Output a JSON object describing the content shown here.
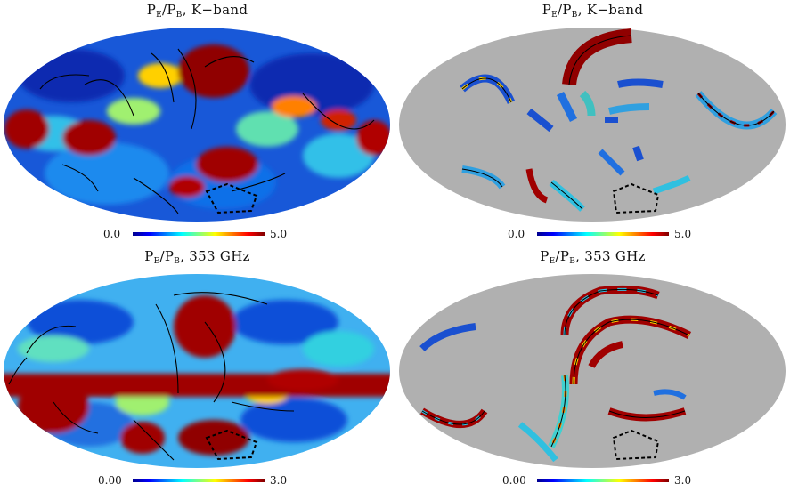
{
  "panels": [
    {
      "id": "top-left",
      "title": {
        "main": "P",
        "sub1": "E",
        "mid": "/P",
        "sub2": "B",
        "suffix": ", K−band"
      },
      "colorbar": {
        "min_label": "0.0",
        "max_label": "5.0",
        "min": 0.0,
        "max": 5.0
      },
      "masked": false
    },
    {
      "id": "top-right",
      "title": {
        "main": "P",
        "sub1": "E",
        "mid": "/P",
        "sub2": "B",
        "suffix": ", K−band"
      },
      "colorbar": {
        "min_label": "0.0",
        "max_label": "5.0",
        "min": 0.0,
        "max": 5.0
      },
      "masked": true
    },
    {
      "id": "bottom-left",
      "title": {
        "main": "P",
        "sub1": "E",
        "mid": "/P",
        "sub2": "B",
        "suffix": ", 353 GHz"
      },
      "colorbar": {
        "min_label": "0.00",
        "max_label": "3.0",
        "min": 0.0,
        "max": 3.0
      },
      "masked": false
    },
    {
      "id": "bottom-right",
      "title": {
        "main": "P",
        "sub1": "E",
        "mid": "/P",
        "sub2": "B",
        "suffix": ", 353 GHz"
      },
      "colorbar": {
        "min_label": "0.00",
        "max_label": "3.0",
        "min": 0.0,
        "max": 3.0
      },
      "masked": true
    }
  ],
  "colors": {
    "mask_gray": "#b0b0b0",
    "colormap": [
      "#00008f",
      "#0000ff",
      "#0080ff",
      "#00ffff",
      "#80ff80",
      "#ffff00",
      "#ff8000",
      "#ff0000",
      "#800000"
    ]
  }
}
